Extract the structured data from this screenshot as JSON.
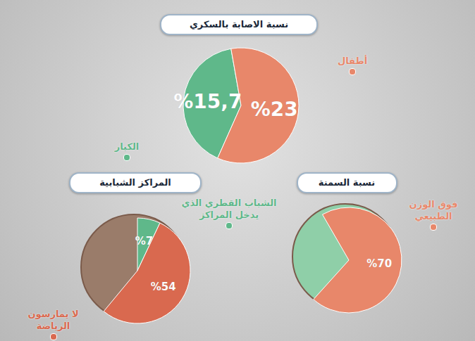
{
  "chart_data": [
    {
      "type": "pie",
      "title": "نسبة الاصابة بالسكري",
      "categories": [
        "الكبار",
        "أطفال"
      ],
      "values": [
        15.7,
        23
      ],
      "value_labels": [
        "%15,7",
        "%23"
      ],
      "colors": [
        "#5fb88a",
        "#e8876a"
      ],
      "data_labels": true
    },
    {
      "type": "pie",
      "title": "المراكز الشبابية",
      "categories": [
        "الشباب القطري الذي يدخل المراكز",
        "لا يمارسون الرياضة"
      ],
      "values": [
        7,
        54
      ],
      "value_labels": [
        "%7",
        "%54"
      ],
      "colors": [
        "#5fb88a",
        "#d9694f"
      ],
      "data_labels": true
    },
    {
      "type": "pie",
      "title": "نسبة السمنة",
      "categories": [
        "فوق الوزن الطبيعي"
      ],
      "values": [
        70
      ],
      "value_labels": [
        "%70"
      ],
      "colors": [
        "#e8876a"
      ],
      "data_labels": true
    }
  ]
}
